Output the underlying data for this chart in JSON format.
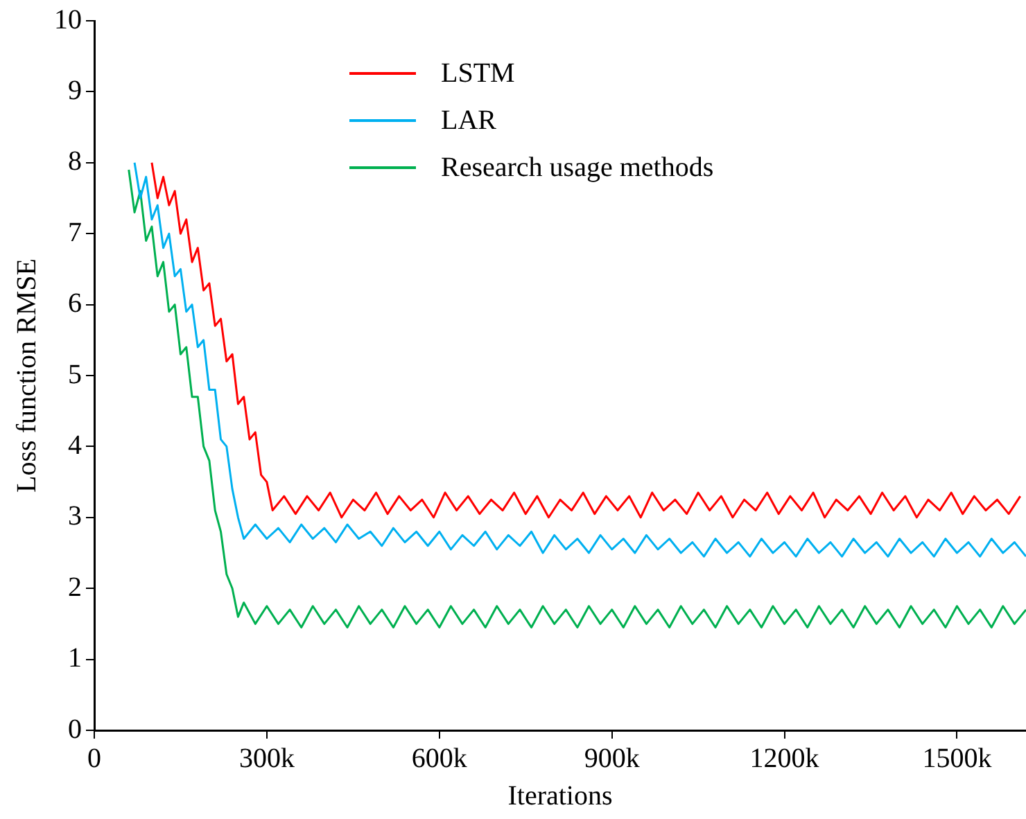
{
  "chart_data": {
    "type": "line",
    "xlabel": "Iterations",
    "ylabel": "Loss function RMSE",
    "xlim": [
      0,
      1620000
    ],
    "ylim": [
      0,
      10
    ],
    "xticks": [
      {
        "value": 0,
        "label": "0"
      },
      {
        "value": 300000,
        "label": "300k"
      },
      {
        "value": 600000,
        "label": "600k"
      },
      {
        "value": 900000,
        "label": "900k"
      },
      {
        "value": 1200000,
        "label": "1200k"
      },
      {
        "value": 1500000,
        "label": "1500k"
      }
    ],
    "yticks": [
      0,
      1,
      2,
      3,
      4,
      5,
      6,
      7,
      8,
      9,
      10
    ],
    "grid": false,
    "legend": "top",
    "marker": "none",
    "line_style": "solid",
    "series": [
      {
        "name": "LSTM",
        "color": "#ff0000",
        "x": [
          100000,
          110000,
          120000,
          130000,
          140000,
          150000,
          160000,
          170000,
          180000,
          190000,
          200000,
          210000,
          220000,
          230000,
          240000,
          250000,
          260000,
          270000,
          280000,
          290000,
          300000,
          310000,
          330000,
          350000,
          370000,
          390000,
          410000,
          430000,
          450000,
          470000,
          490000,
          510000,
          530000,
          550000,
          570000,
          590000,
          610000,
          630000,
          650000,
          670000,
          690000,
          710000,
          730000,
          750000,
          770000,
          790000,
          810000,
          830000,
          850000,
          870000,
          890000,
          910000,
          930000,
          950000,
          970000,
          990000,
          1010000,
          1030000,
          1050000,
          1070000,
          1090000,
          1110000,
          1130000,
          1150000,
          1170000,
          1190000,
          1210000,
          1230000,
          1250000,
          1270000,
          1290000,
          1310000,
          1330000,
          1350000,
          1370000,
          1390000,
          1410000,
          1430000,
          1450000,
          1470000,
          1490000,
          1510000,
          1530000,
          1550000,
          1570000,
          1590000,
          1610000
        ],
        "values": [
          8.0,
          7.5,
          7.8,
          7.4,
          7.6,
          7.0,
          7.2,
          6.6,
          6.8,
          6.2,
          6.3,
          5.7,
          5.8,
          5.2,
          5.3,
          4.6,
          4.7,
          4.1,
          4.2,
          3.6,
          3.5,
          3.1,
          3.3,
          3.05,
          3.3,
          3.1,
          3.35,
          3.0,
          3.25,
          3.1,
          3.35,
          3.05,
          3.3,
          3.1,
          3.25,
          3.0,
          3.35,
          3.1,
          3.3,
          3.05,
          3.25,
          3.1,
          3.35,
          3.05,
          3.3,
          3.0,
          3.25,
          3.1,
          3.35,
          3.05,
          3.3,
          3.1,
          3.3,
          3.0,
          3.35,
          3.1,
          3.25,
          3.05,
          3.35,
          3.1,
          3.3,
          3.0,
          3.25,
          3.1,
          3.35,
          3.05,
          3.3,
          3.1,
          3.35,
          3.0,
          3.25,
          3.1,
          3.3,
          3.05,
          3.35,
          3.1,
          3.3,
          3.0,
          3.25,
          3.1,
          3.35,
          3.05,
          3.3,
          3.1,
          3.25,
          3.05,
          3.3
        ]
      },
      {
        "name": "LAR",
        "color": "#00b0f0",
        "x": [
          70000,
          80000,
          90000,
          100000,
          110000,
          120000,
          130000,
          140000,
          150000,
          160000,
          170000,
          180000,
          190000,
          200000,
          210000,
          220000,
          230000,
          240000,
          250000,
          260000,
          280000,
          300000,
          320000,
          340000,
          360000,
          380000,
          400000,
          420000,
          440000,
          460000,
          480000,
          500000,
          520000,
          540000,
          560000,
          580000,
          600000,
          620000,
          640000,
          660000,
          680000,
          700000,
          720000,
          740000,
          760000,
          780000,
          800000,
          820000,
          840000,
          860000,
          880000,
          900000,
          920000,
          940000,
          960000,
          980000,
          1000000,
          1020000,
          1040000,
          1060000,
          1080000,
          1100000,
          1120000,
          1140000,
          1160000,
          1180000,
          1200000,
          1220000,
          1240000,
          1260000,
          1280000,
          1300000,
          1320000,
          1340000,
          1360000,
          1380000,
          1400000,
          1420000,
          1440000,
          1460000,
          1480000,
          1500000,
          1520000,
          1540000,
          1560000,
          1580000,
          1600000,
          1620000
        ],
        "values": [
          8.0,
          7.5,
          7.8,
          7.2,
          7.4,
          6.8,
          7.0,
          6.4,
          6.5,
          5.9,
          6.0,
          5.4,
          5.5,
          4.8,
          4.8,
          4.1,
          4.0,
          3.4,
          3.0,
          2.7,
          2.9,
          2.7,
          2.85,
          2.65,
          2.9,
          2.7,
          2.85,
          2.65,
          2.9,
          2.7,
          2.8,
          2.6,
          2.85,
          2.65,
          2.8,
          2.6,
          2.8,
          2.55,
          2.75,
          2.6,
          2.8,
          2.55,
          2.75,
          2.6,
          2.8,
          2.5,
          2.75,
          2.55,
          2.7,
          2.5,
          2.75,
          2.55,
          2.7,
          2.5,
          2.75,
          2.55,
          2.7,
          2.5,
          2.65,
          2.45,
          2.7,
          2.5,
          2.65,
          2.45,
          2.7,
          2.5,
          2.65,
          2.45,
          2.7,
          2.5,
          2.65,
          2.45,
          2.7,
          2.5,
          2.65,
          2.45,
          2.7,
          2.5,
          2.65,
          2.45,
          2.7,
          2.5,
          2.65,
          2.45,
          2.7,
          2.5,
          2.65,
          2.45
        ]
      },
      {
        "name": "Research usage methods",
        "color": "#00b050",
        "x": [
          60000,
          70000,
          80000,
          90000,
          100000,
          110000,
          120000,
          130000,
          140000,
          150000,
          160000,
          170000,
          180000,
          190000,
          200000,
          210000,
          220000,
          230000,
          240000,
          250000,
          260000,
          280000,
          300000,
          320000,
          340000,
          360000,
          380000,
          400000,
          420000,
          440000,
          460000,
          480000,
          500000,
          520000,
          540000,
          560000,
          580000,
          600000,
          620000,
          640000,
          660000,
          680000,
          700000,
          720000,
          740000,
          760000,
          780000,
          800000,
          820000,
          840000,
          860000,
          880000,
          900000,
          920000,
          940000,
          960000,
          980000,
          1000000,
          1020000,
          1040000,
          1060000,
          1080000,
          1100000,
          1120000,
          1140000,
          1160000,
          1180000,
          1200000,
          1220000,
          1240000,
          1260000,
          1280000,
          1300000,
          1320000,
          1340000,
          1360000,
          1380000,
          1400000,
          1420000,
          1440000,
          1460000,
          1480000,
          1500000,
          1520000,
          1540000,
          1560000,
          1580000,
          1600000,
          1620000
        ],
        "values": [
          7.9,
          7.3,
          7.6,
          6.9,
          7.1,
          6.4,
          6.6,
          5.9,
          6.0,
          5.3,
          5.4,
          4.7,
          4.7,
          4.0,
          3.8,
          3.1,
          2.8,
          2.2,
          2.0,
          1.6,
          1.8,
          1.5,
          1.75,
          1.5,
          1.7,
          1.45,
          1.75,
          1.5,
          1.7,
          1.45,
          1.75,
          1.5,
          1.7,
          1.45,
          1.75,
          1.5,
          1.7,
          1.45,
          1.75,
          1.5,
          1.7,
          1.45,
          1.75,
          1.5,
          1.7,
          1.45,
          1.75,
          1.5,
          1.7,
          1.45,
          1.75,
          1.5,
          1.7,
          1.45,
          1.75,
          1.5,
          1.7,
          1.45,
          1.75,
          1.5,
          1.7,
          1.45,
          1.75,
          1.5,
          1.7,
          1.45,
          1.75,
          1.5,
          1.7,
          1.45,
          1.75,
          1.5,
          1.7,
          1.45,
          1.75,
          1.5,
          1.7,
          1.45,
          1.75,
          1.5,
          1.7,
          1.45,
          1.75,
          1.5,
          1.7,
          1.45,
          1.75,
          1.5,
          1.7
        ]
      }
    ]
  }
}
